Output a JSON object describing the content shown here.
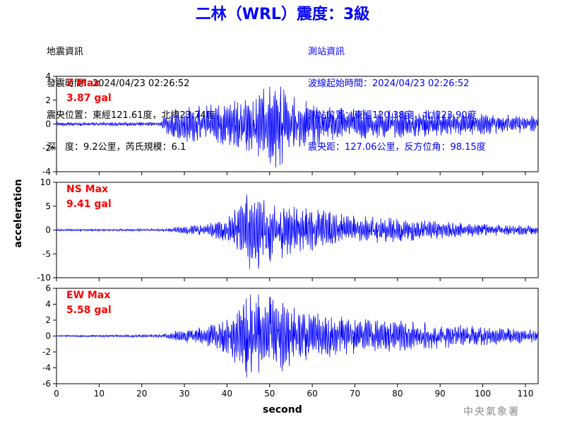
{
  "header": {
    "title": "二林（WRL）震度：3級"
  },
  "quake_info": [
    "地震資訊",
    "發震時間：2024/04/23 02:26:52",
    "震央位置：東經121.61度，北緯23.74度",
    "深　度：9.2公里，芮氏規模：6.1"
  ],
  "station_info": [
    "測站資訊",
    "波線起始時間：2024/04/23 02:26:52",
    "測站位置：東經120.38度，北緯23.90度",
    "震央距：127.06公里，反方位角：98.15度"
  ],
  "footer": {
    "agency": "中央氣象署"
  },
  "colors": {
    "trace": "#0000ff",
    "peak_label": "#ff0000",
    "title": "#0000ff"
  },
  "chart_data": [
    {
      "type": "line",
      "component": "Z",
      "peak_label": "Z Max",
      "peak_value": "3.87 gal",
      "ylim": [
        -4,
        4
      ],
      "yticks": [
        -4,
        -2,
        0,
        2,
        4
      ],
      "xlim": [
        0,
        113
      ],
      "xticks": [
        0,
        10,
        20,
        30,
        40,
        50,
        60,
        70,
        80,
        90,
        100,
        110
      ],
      "show_xtick_labels": false,
      "envelope": [
        [
          0,
          0.15
        ],
        [
          24,
          0.15
        ],
        [
          25,
          0.5
        ],
        [
          27,
          1.2
        ],
        [
          30,
          1.5
        ],
        [
          35,
          1.6
        ],
        [
          40,
          1.8
        ],
        [
          45,
          2.3
        ],
        [
          50,
          3.3
        ],
        [
          52,
          3.87
        ],
        [
          55,
          2.4
        ],
        [
          60,
          1.8
        ],
        [
          65,
          1.4
        ],
        [
          70,
          1.3
        ],
        [
          75,
          1.2
        ],
        [
          80,
          1.2
        ],
        [
          90,
          1.0
        ],
        [
          100,
          0.9
        ],
        [
          113,
          0.7
        ]
      ]
    },
    {
      "type": "line",
      "component": "NS",
      "peak_label": "NS Max",
      "peak_value": "9.41 gal",
      "ylim": [
        -10,
        10
      ],
      "yticks": [
        -10,
        -5,
        0,
        5,
        10
      ],
      "xlim": [
        0,
        113
      ],
      "xticks": [
        0,
        10,
        20,
        30,
        40,
        50,
        60,
        70,
        80,
        90,
        100,
        110
      ],
      "show_xtick_labels": false,
      "envelope": [
        [
          0,
          0.2
        ],
        [
          25,
          0.25
        ],
        [
          30,
          0.8
        ],
        [
          35,
          1.2
        ],
        [
          40,
          2.5
        ],
        [
          43,
          5.5
        ],
        [
          46,
          9.41
        ],
        [
          49,
          7
        ],
        [
          52,
          6.5
        ],
        [
          55,
          5
        ],
        [
          60,
          4.5
        ],
        [
          65,
          3.8
        ],
        [
          70,
          3
        ],
        [
          75,
          2.8
        ],
        [
          80,
          2.5
        ],
        [
          90,
          1.8
        ],
        [
          100,
          1.3
        ],
        [
          113,
          0.9
        ]
      ]
    },
    {
      "type": "line",
      "component": "EW",
      "peak_label": "EW Max",
      "peak_value": "5.58 gal",
      "ylim": [
        -6,
        6
      ],
      "yticks": [
        -6,
        -4,
        -2,
        0,
        2,
        4,
        6
      ],
      "xlim": [
        0,
        113
      ],
      "xticks": [
        0,
        10,
        20,
        30,
        40,
        50,
        60,
        70,
        80,
        90,
        100,
        110
      ],
      "show_xtick_labels": true,
      "xlabel": "second",
      "envelope": [
        [
          0,
          0.1
        ],
        [
          25,
          0.2
        ],
        [
          28,
          0.7
        ],
        [
          35,
          1.2
        ],
        [
          40,
          2.2
        ],
        [
          43,
          4.2
        ],
        [
          45,
          5.58
        ],
        [
          50,
          5
        ],
        [
          53,
          4.5
        ],
        [
          57,
          3.2
        ],
        [
          60,
          3
        ],
        [
          65,
          2.6
        ],
        [
          70,
          2.3
        ],
        [
          75,
          2
        ],
        [
          80,
          2
        ],
        [
          90,
          1.6
        ],
        [
          100,
          1.2
        ],
        [
          113,
          0.8
        ]
      ]
    }
  ],
  "axes": {
    "ylabel": "acceleration",
    "xlabel": "second"
  }
}
